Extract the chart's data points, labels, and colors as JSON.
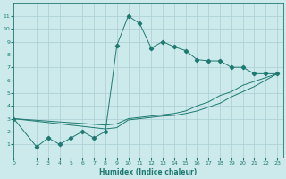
{
  "xlabel": "Humidex (Indice chaleur)",
  "bg_color": "#cce9ec",
  "grid_color": "#aacfd4",
  "line_color": "#1e7a70",
  "xlim": [
    0,
    23.5
  ],
  "ylim": [
    0,
    12
  ],
  "xticks": [
    0,
    2,
    3,
    4,
    5,
    6,
    7,
    8,
    9,
    10,
    11,
    12,
    13,
    14,
    15,
    16,
    17,
    18,
    19,
    20,
    21,
    22,
    23
  ],
  "yticks": [
    1,
    2,
    3,
    4,
    5,
    6,
    7,
    8,
    9,
    10,
    11
  ],
  "line1_x": [
    0,
    2,
    3,
    4,
    5,
    6,
    7,
    8,
    9,
    10,
    11,
    12,
    13,
    14,
    15,
    16,
    17,
    18,
    19,
    20,
    21,
    22,
    23
  ],
  "line1_y": [
    3,
    0.8,
    1.5,
    1.0,
    1.5,
    2.0,
    1.5,
    2.0,
    8.7,
    11.0,
    10.4,
    8.5,
    9.0,
    8.6,
    8.3,
    7.6,
    7.5,
    7.5,
    7.0,
    7.0,
    6.5,
    6.5,
    6.5
  ],
  "line2_x": [
    0,
    8,
    9,
    10,
    11,
    12,
    13,
    14,
    15,
    16,
    17,
    18,
    19,
    20,
    21,
    22,
    23
  ],
  "line2_y": [
    3,
    2.5,
    2.6,
    3.0,
    3.1,
    3.2,
    3.3,
    3.4,
    3.6,
    4.0,
    4.3,
    4.8,
    5.1,
    5.6,
    5.9,
    6.2,
    6.5
  ],
  "line3_x": [
    0,
    8,
    9,
    10,
    11,
    12,
    13,
    14,
    15,
    16,
    17,
    18,
    19,
    20,
    21,
    22,
    23
  ],
  "line3_y": [
    3,
    2.2,
    2.3,
    2.9,
    3.0,
    3.1,
    3.2,
    3.25,
    3.4,
    3.6,
    3.9,
    4.2,
    4.7,
    5.1,
    5.5,
    6.0,
    6.5
  ]
}
